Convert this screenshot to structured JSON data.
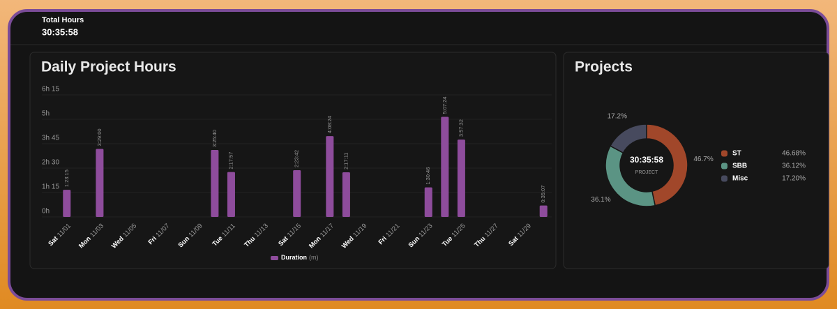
{
  "header": {
    "label": "Total Hours",
    "value": "30:35:58"
  },
  "chart_data": [
    {
      "type": "bar",
      "title": "Daily Project Hours",
      "categories": [
        "11/01",
        null,
        "11/03",
        null,
        "11/05",
        null,
        "11/07",
        null,
        "11/09",
        null,
        "11/11",
        null,
        "11/13",
        null,
        "11/15",
        null,
        "11/17",
        null,
        "11/19",
        null,
        "11/21",
        null,
        "11/23",
        null,
        "11/25",
        null,
        "11/27",
        null,
        "11/29",
        null
      ],
      "weekdays": [
        "Sat",
        null,
        "Mon",
        null,
        "Wed",
        null,
        "Fri",
        null,
        "Sun",
        null,
        "Tue",
        null,
        "Thu",
        null,
        "Sat",
        null,
        "Mon",
        null,
        "Wed",
        null,
        "Fri",
        null,
        "Sun",
        null,
        "Tue",
        null,
        "Thu",
        null,
        "Sat",
        null
      ],
      "series": [
        {
          "name": "Duration",
          "unit": "(m)",
          "color": "#8e4c9c",
          "values": [
            83.25,
            null,
            209,
            null,
            null,
            null,
            null,
            null,
            null,
            205.67,
            137.95,
            null,
            null,
            null,
            143.7,
            null,
            248.4,
            137.18,
            null,
            null,
            null,
            null,
            90.77,
            307.4,
            237.53,
            null,
            null,
            null,
            null,
            35.12
          ],
          "value_labels": [
            "1:23:15",
            null,
            "3:29:00",
            null,
            null,
            null,
            null,
            null,
            null,
            "3:25:40",
            "2:17:57",
            null,
            null,
            null,
            "2:23:42",
            null,
            "4:08:24",
            "2:17:11",
            null,
            null,
            null,
            null,
            "1:30:46",
            "5:07:24",
            "3:57:32",
            null,
            null,
            null,
            null,
            "0:35:07"
          ]
        }
      ],
      "ylim": [
        0,
        375
      ],
      "yticks": [
        {
          "value": 0,
          "label": "0h"
        },
        {
          "value": 75,
          "label": "1h 15"
        },
        {
          "value": 150,
          "label": "2h 30"
        },
        {
          "value": 225,
          "label": "3h 45"
        },
        {
          "value": 300,
          "label": "5h"
        },
        {
          "value": 375,
          "label": "6h 15"
        }
      ],
      "grid": true
    },
    {
      "type": "pie",
      "title": "Projects",
      "center_value": "30:35:58",
      "center_label": "PROJECT",
      "categories": [
        "ST",
        "SBB",
        "Misc"
      ],
      "values": [
        46.68,
        36.12,
        17.2
      ],
      "value_labels": [
        "46.7%",
        "36.1%",
        "17.2%"
      ],
      "legend_labels": [
        "46.68%",
        "36.12%",
        "17.20%"
      ],
      "colors": [
        "#a1472a",
        "#5b9484",
        "#474a5e"
      ]
    }
  ]
}
